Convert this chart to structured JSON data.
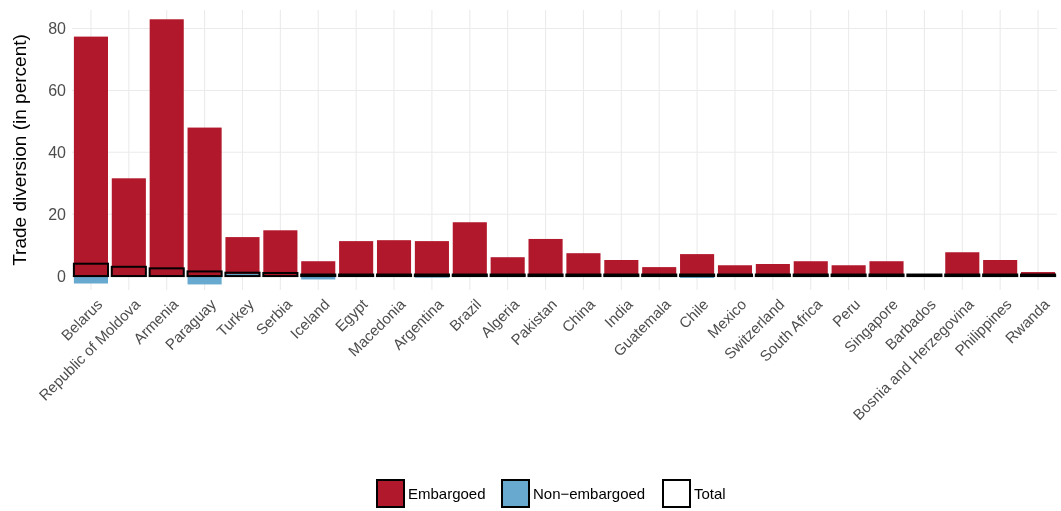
{
  "chart_data": {
    "type": "bar",
    "ylabel": "Trade diversion (in percent)",
    "categories": [
      "Belarus",
      "Republic of Moldova",
      "Armenia",
      "Paraguay",
      "Turkey",
      "Serbia",
      "Iceland",
      "Egypt",
      "Macedonia",
      "Argentina",
      "Brazil",
      "Algeria",
      "Pakistan",
      "China",
      "India",
      "Guatemala",
      "Chile",
      "Mexico",
      "Switzerland",
      "South Africa",
      "Peru",
      "Singapore",
      "Barbados",
      "Bosnia and Herzegovina",
      "Philippines",
      "Rwanda"
    ],
    "series": [
      {
        "name": "Embargoed",
        "color": "#b2182b",
        "values": [
          77.4,
          31.6,
          83,
          48,
          12.6,
          14.8,
          4.8,
          11.3,
          11.6,
          11.3,
          17.4,
          6.1,
          12,
          7.4,
          5.2,
          2.9,
          7.1,
          3.5,
          3.9,
          4.8,
          3.5,
          4.8,
          0.1,
          7.7,
          5.2,
          1.3
        ]
      },
      {
        "name": "Non−embargoed",
        "color": "#67a9cf",
        "values": [
          -2.4,
          0,
          0,
          -2.7,
          0.7,
          0,
          -1.1,
          0,
          0,
          -0.5,
          0,
          0,
          0,
          0,
          0,
          0,
          -0.6,
          0,
          0,
          0,
          0,
          0,
          0,
          0,
          0,
          0
        ]
      },
      {
        "name": "Total",
        "color": "#000000",
        "values": [
          4,
          3,
          2.5,
          1.5,
          1.1,
          1,
          0.5,
          0.5,
          0.5,
          0.5,
          0.5,
          0.5,
          0.5,
          0.5,
          0.5,
          0.5,
          0.5,
          0.5,
          0.5,
          0.5,
          0.5,
          0.5,
          0.5,
          0.5,
          0.5,
          0.5
        ]
      }
    ],
    "ylim": [
      -4.5,
      86
    ],
    "yticks": [
      0,
      20,
      40,
      60,
      80
    ],
    "grid": true,
    "legend": "bottom"
  }
}
